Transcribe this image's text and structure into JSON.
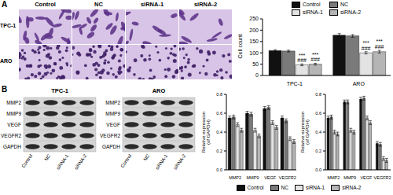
{
  "figure_labels": [
    "A",
    "B"
  ],
  "micrographs": {
    "columns": [
      "Control",
      "NC",
      "siRNA-1",
      "siRNA-2"
    ],
    "rows": [
      "TPC-1",
      "ARO"
    ]
  },
  "blots": [
    {
      "title": "TPC-1",
      "rows": [
        "MMP2",
        "MMP9",
        "VEGF",
        "VEGFR2",
        "GAPDH"
      ],
      "lanes": [
        "Control",
        "NC",
        "siRNA-1",
        "siRNA-2"
      ]
    },
    {
      "title": "ARO",
      "rows": [
        "MMP2",
        "MMP9",
        "VEGF",
        "VEGFR2",
        "GAPDH"
      ],
      "lanes": [
        "Control",
        "NC",
        "siRNA-1",
        "siRNA-2"
      ]
    }
  ],
  "chart_data": [
    {
      "type": "bar",
      "y_label": "Cell count",
      "categories": [
        "TPC-1",
        "ARO"
      ],
      "ylim": [
        0,
        250
      ],
      "yticks": [
        0,
        50,
        100,
        150,
        200,
        250
      ],
      "legend": "top",
      "series": [
        {
          "name": "Control",
          "color": "#111111",
          "values": [
            110,
            178
          ],
          "errors": [
            4,
            7
          ]
        },
        {
          "name": "NC",
          "color": "#7a7a7a",
          "values": [
            108,
            175
          ],
          "errors": [
            4,
            6
          ]
        },
        {
          "name": "siRNA-1",
          "color": "#e3e3e3",
          "values": [
            47,
            100
          ],
          "errors": [
            4,
            5
          ],
          "significance": [
            [
              "***",
              "###"
            ],
            [
              "***",
              "###"
            ]
          ]
        },
        {
          "name": "siRNA-2",
          "color": "#b5b5b5",
          "values": [
            50,
            105
          ],
          "errors": [
            4,
            6
          ],
          "significance": [
            [
              "***",
              "###"
            ],
            [
              "***",
              "###"
            ]
          ]
        }
      ]
    },
    {
      "type": "bar",
      "y_label": "Relative expression (of GAPDH)",
      "categories": [
        "MMP2",
        "MMP9",
        "VEGF",
        "VEGFR2"
      ],
      "ylim": [
        0,
        0.8
      ],
      "yticks": [
        {
          "value": 0,
          "label": "0.0"
        },
        0.2,
        0.4,
        0.6,
        0.8
      ],
      "legend": "bottom",
      "series": [
        {
          "name": "Control",
          "color": "#111111",
          "values": [
            0.55,
            0.6,
            0.65,
            0.55
          ],
          "errors": [
            0.02,
            0.02,
            0.02,
            0.02
          ]
        },
        {
          "name": "NC",
          "color": "#7a7a7a",
          "values": [
            0.56,
            0.59,
            0.66,
            0.52
          ],
          "errors": [
            0.02,
            0.02,
            0.02,
            0.02
          ]
        },
        {
          "name": "siRNA-1",
          "color": "#e3e3e3",
          "values": [
            0.48,
            0.42,
            0.5,
            0.33
          ],
          "errors": [
            0.02,
            0.02,
            0.02,
            0.02
          ]
        },
        {
          "name": "siRNA-2",
          "color": "#b5b5b5",
          "values": [
            0.42,
            0.36,
            0.45,
            0.3
          ],
          "errors": [
            0.02,
            0.02,
            0.02,
            0.02
          ]
        }
      ]
    },
    {
      "type": "bar",
      "y_label": "Relative expression (of GAPDH)",
      "categories": [
        "MMP2",
        "MMP9",
        "VEGF",
        "VEGFR2"
      ],
      "ylim": [
        0,
        0.8
      ],
      "yticks": [
        {
          "value": 0,
          "label": "0.0"
        },
        0.2,
        0.4,
        0.6,
        0.8
      ],
      "series": [
        {
          "name": "Control",
          "color": "#111111",
          "values": [
            0.55,
            0.72,
            0.75,
            0.28
          ],
          "errors": [
            0.02,
            0.02,
            0.02,
            0.02
          ]
        },
        {
          "name": "NC",
          "color": "#7a7a7a",
          "values": [
            0.56,
            0.72,
            0.76,
            0.27
          ],
          "errors": [
            0.02,
            0.02,
            0.02,
            0.02
          ]
        },
        {
          "name": "siRNA-1",
          "color": "#e3e3e3",
          "values": [
            0.4,
            0.42,
            0.55,
            0.12
          ],
          "errors": [
            0.02,
            0.02,
            0.02,
            0.02
          ]
        },
        {
          "name": "siRNA-2",
          "color": "#b5b5b5",
          "values": [
            0.38,
            0.4,
            0.5,
            0.1
          ],
          "errors": [
            0.02,
            0.02,
            0.02,
            0.02
          ]
        }
      ]
    }
  ]
}
